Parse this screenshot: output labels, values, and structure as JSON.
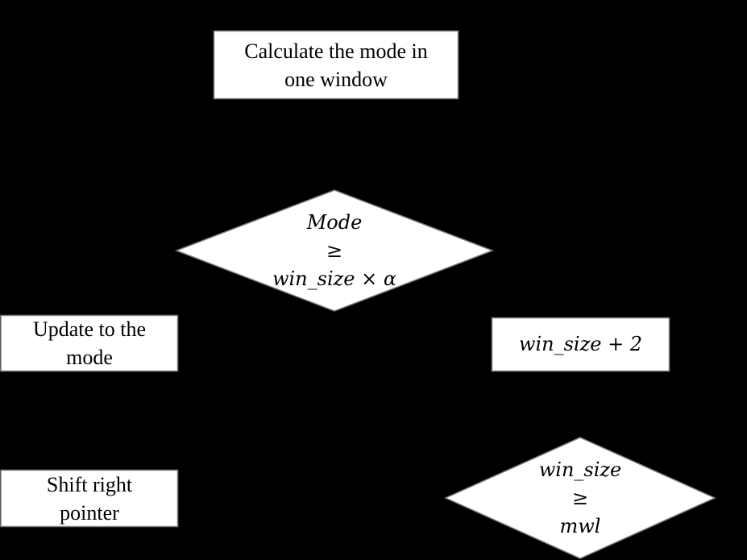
{
  "nodes": {
    "calc_mode": {
      "lines": [
        "Calculate the mode in",
        "one window"
      ]
    },
    "mode_check": {
      "lines": [
        "Mode",
        "≥",
        "win_size × α"
      ]
    },
    "update_mode": {
      "lines": [
        "Update to the",
        "mode"
      ]
    },
    "win_increment": {
      "lines": [
        "win_size + 2"
      ]
    },
    "shift_pointer": {
      "lines": [
        "Shift right",
        "pointer"
      ]
    },
    "mwl_check": {
      "lines": [
        "win_size",
        "≥",
        "mwl"
      ]
    }
  },
  "colors": {
    "background": "#000000",
    "shape_fill": "#ffffff",
    "shape_stroke": "#7f7f7f"
  }
}
